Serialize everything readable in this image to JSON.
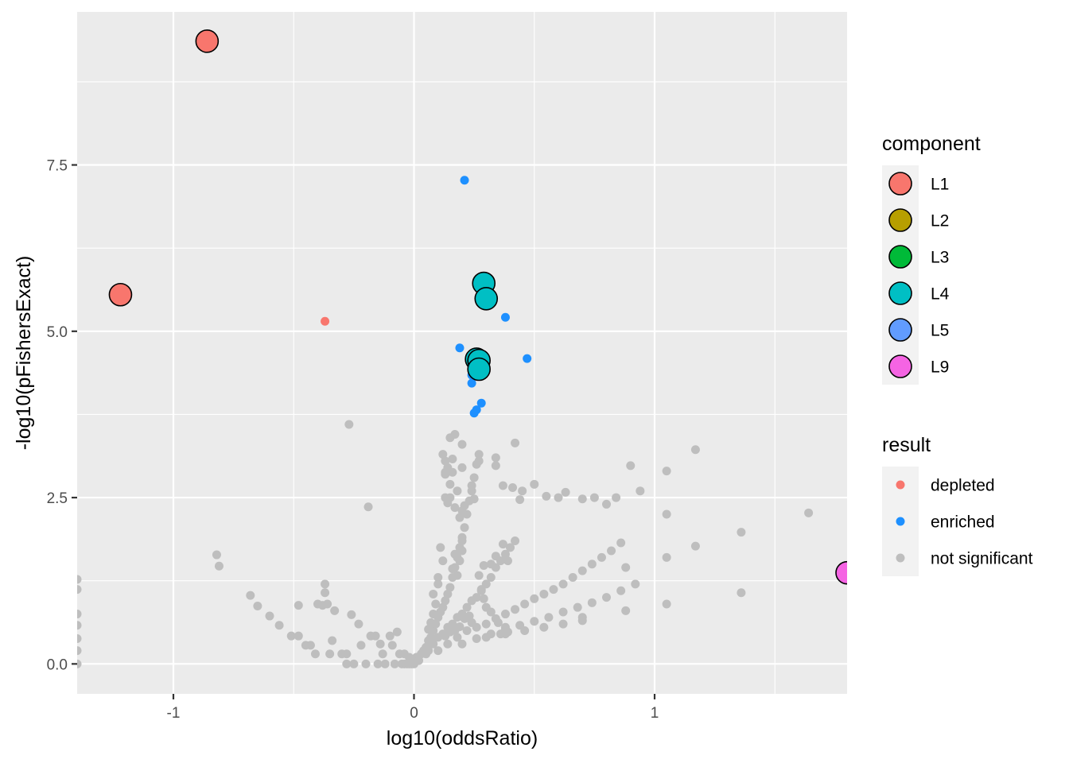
{
  "chart_data": {
    "type": "scatter",
    "xlabel": "log10(oddsRatio)",
    "ylabel": "-log10(pFishersExact)",
    "xlim": [
      -1.4,
      1.8
    ],
    "ylim": [
      -0.45,
      9.8
    ],
    "x_ticks": [
      {
        "value": -1,
        "label": "-1"
      },
      {
        "value": 0,
        "label": "0"
      },
      {
        "value": 1,
        "label": "1"
      }
    ],
    "y_ticks": [
      {
        "value": 0.0,
        "label": "0.0"
      },
      {
        "value": 2.5,
        "label": "2.5"
      },
      {
        "value": 5.0,
        "label": "5.0"
      },
      {
        "value": 7.5,
        "label": "7.5"
      }
    ],
    "panel_background": "#ebebeb",
    "grid": true,
    "legend_position": "right",
    "legends": [
      {
        "title": "component",
        "entries": [
          {
            "label": "L1",
            "color": "#f8766d"
          },
          {
            "label": "L2",
            "color": "#b79f00"
          },
          {
            "label": "L3",
            "color": "#00ba38"
          },
          {
            "label": "L4",
            "color": "#00bfc4"
          },
          {
            "label": "L5",
            "color": "#619cff"
          },
          {
            "label": "L9",
            "color": "#f564e3"
          }
        ]
      },
      {
        "title": "result",
        "entries": [
          {
            "label": "depleted",
            "color": "#f8766d"
          },
          {
            "label": "enriched",
            "color": "#1e90ff"
          },
          {
            "label": "not significant",
            "color": "#bebebe"
          }
        ]
      }
    ],
    "series": [
      {
        "name": "not significant",
        "color": "#bebebe",
        "points": [
          [
            -1.4,
            1.27
          ],
          [
            -1.4,
            1.12
          ],
          [
            -1.4,
            0.75
          ],
          [
            -1.4,
            0.58
          ],
          [
            -1.4,
            0.38
          ],
          [
            -1.4,
            0.2
          ],
          [
            -1.4,
            0.0
          ],
          [
            -0.82,
            1.64
          ],
          [
            -0.81,
            1.47
          ],
          [
            -0.68,
            1.03
          ],
          [
            -0.65,
            0.87
          ],
          [
            -0.6,
            0.72
          ],
          [
            -0.56,
            0.58
          ],
          [
            -0.51,
            0.42
          ],
          [
            -0.48,
            0.42
          ],
          [
            -0.48,
            0.88
          ],
          [
            -0.45,
            0.28
          ],
          [
            -0.43,
            0.28
          ],
          [
            -0.41,
            0.15
          ],
          [
            -0.4,
            0.9
          ],
          [
            -0.38,
            0.88
          ],
          [
            -0.37,
            1.2
          ],
          [
            -0.37,
            1.07
          ],
          [
            -0.36,
            0.9
          ],
          [
            -0.35,
            0.15
          ],
          [
            -0.34,
            0.35
          ],
          [
            -0.33,
            0.8
          ],
          [
            -0.3,
            0.15
          ],
          [
            -0.28,
            0.15
          ],
          [
            -0.28,
            0.0
          ],
          [
            -0.26,
            0.74
          ],
          [
            -0.25,
            0.0
          ],
          [
            -0.23,
            0.6
          ],
          [
            -0.22,
            0.28
          ],
          [
            -0.2,
            0.0
          ],
          [
            -0.19,
            2.36
          ],
          [
            -0.18,
            0.42
          ],
          [
            -0.16,
            0.42
          ],
          [
            -0.15,
            0.0
          ],
          [
            -0.14,
            0.3
          ],
          [
            -0.13,
            0.15
          ],
          [
            -0.12,
            0.0
          ],
          [
            -0.1,
            0.42
          ],
          [
            -0.09,
            0.28
          ],
          [
            -0.08,
            0.0
          ],
          [
            -0.06,
            0.15
          ],
          [
            -0.05,
            0.0
          ],
          [
            -0.04,
            0.0
          ],
          [
            -0.03,
            0.0
          ],
          [
            -0.02,
            0.0
          ],
          [
            -0.01,
            0.0
          ],
          [
            0.0,
            0.0
          ],
          [
            -0.07,
            0.48
          ],
          [
            -0.04,
            0.15
          ],
          [
            -0.02,
            0.1
          ],
          [
            -0.27,
            3.6
          ],
          [
            0.01,
            0.1
          ],
          [
            0.02,
            0.05
          ],
          [
            0.03,
            0.15
          ],
          [
            0.04,
            0.2
          ],
          [
            0.05,
            0.25
          ],
          [
            0.06,
            0.35
          ],
          [
            0.07,
            0.4
          ],
          [
            0.08,
            0.5
          ],
          [
            0.09,
            0.6
          ],
          [
            0.1,
            0.7
          ],
          [
            0.11,
            0.78
          ],
          [
            0.12,
            0.85
          ],
          [
            0.13,
            0.95
          ],
          [
            0.14,
            1.05
          ],
          [
            0.15,
            1.15
          ],
          [
            0.16,
            1.3
          ],
          [
            0.17,
            1.45
          ],
          [
            0.18,
            1.6
          ],
          [
            0.19,
            1.75
          ],
          [
            0.2,
            1.9
          ],
          [
            0.21,
            2.05
          ],
          [
            0.22,
            2.25
          ],
          [
            0.23,
            2.45
          ],
          [
            0.24,
            2.6
          ],
          [
            0.25,
            2.8
          ],
          [
            0.26,
            3.0
          ],
          [
            0.27,
            3.15
          ],
          [
            0.05,
            0.15
          ],
          [
            0.06,
            0.2
          ],
          [
            0.08,
            0.3
          ],
          [
            0.1,
            0.4
          ],
          [
            0.12,
            0.45
          ],
          [
            0.14,
            0.55
          ],
          [
            0.16,
            0.6
          ],
          [
            0.18,
            0.7
          ],
          [
            0.2,
            0.75
          ],
          [
            0.22,
            0.85
          ],
          [
            0.24,
            0.95
          ],
          [
            0.26,
            1.0
          ],
          [
            0.28,
            1.1
          ],
          [
            0.3,
            1.2
          ],
          [
            0.32,
            1.3
          ],
          [
            0.34,
            1.45
          ],
          [
            0.36,
            1.55
          ],
          [
            0.38,
            1.65
          ],
          [
            0.4,
            1.75
          ],
          [
            0.42,
            1.85
          ],
          [
            0.1,
            0.2
          ],
          [
            0.14,
            0.3
          ],
          [
            0.18,
            0.4
          ],
          [
            0.22,
            0.5
          ],
          [
            0.26,
            0.55
          ],
          [
            0.3,
            0.6
          ],
          [
            0.34,
            0.68
          ],
          [
            0.38,
            0.75
          ],
          [
            0.42,
            0.82
          ],
          [
            0.46,
            0.9
          ],
          [
            0.5,
            0.98
          ],
          [
            0.54,
            1.05
          ],
          [
            0.58,
            1.12
          ],
          [
            0.62,
            1.2
          ],
          [
            0.66,
            1.3
          ],
          [
            0.7,
            1.4
          ],
          [
            0.74,
            1.5
          ],
          [
            0.78,
            1.6
          ],
          [
            0.82,
            1.7
          ],
          [
            0.86,
            1.82
          ],
          [
            0.2,
            0.3
          ],
          [
            0.26,
            0.38
          ],
          [
            0.32,
            0.45
          ],
          [
            0.38,
            0.52
          ],
          [
            0.44,
            0.58
          ],
          [
            0.5,
            0.64
          ],
          [
            0.56,
            0.7
          ],
          [
            0.62,
            0.78
          ],
          [
            0.68,
            0.85
          ],
          [
            0.74,
            0.92
          ],
          [
            0.8,
            1.0
          ],
          [
            0.86,
            1.1
          ],
          [
            0.92,
            1.2
          ],
          [
            0.3,
            0.4
          ],
          [
            0.38,
            0.45
          ],
          [
            0.46,
            0.5
          ],
          [
            0.54,
            0.55
          ],
          [
            0.62,
            0.6
          ],
          [
            0.7,
            0.65
          ],
          [
            0.6,
            2.5
          ],
          [
            0.63,
            2.58
          ],
          [
            0.7,
            2.48
          ],
          [
            0.75,
            2.5
          ],
          [
            0.8,
            2.4
          ],
          [
            0.84,
            2.5
          ],
          [
            0.9,
            2.98
          ],
          [
            0.94,
            2.6
          ],
          [
            1.05,
            2.9
          ],
          [
            1.05,
            2.25
          ],
          [
            1.17,
            3.22
          ],
          [
            1.17,
            1.77
          ],
          [
            1.05,
            1.6
          ],
          [
            1.05,
            0.9
          ],
          [
            1.36,
            1.98
          ],
          [
            1.36,
            1.07
          ],
          [
            1.64,
            2.27
          ],
          [
            0.88,
            1.45
          ],
          [
            0.88,
            0.8
          ],
          [
            0.7,
            0.7
          ],
          [
            0.55,
            2.52
          ],
          [
            0.5,
            2.7
          ],
          [
            0.45,
            2.6
          ],
          [
            0.44,
            2.47
          ],
          [
            0.41,
            2.65
          ],
          [
            0.37,
            2.68
          ],
          [
            0.42,
            3.32
          ],
          [
            0.34,
            3.1
          ],
          [
            0.34,
            2.98
          ],
          [
            0.27,
            3.05
          ],
          [
            0.2,
            2.95
          ],
          [
            0.16,
            3.08
          ],
          [
            0.16,
            2.88
          ],
          [
            0.13,
            3.05
          ],
          [
            0.14,
            2.95
          ],
          [
            0.13,
            2.88
          ],
          [
            0.12,
            3.15
          ],
          [
            0.15,
            3.4
          ],
          [
            0.17,
            3.45
          ],
          [
            0.2,
            3.3
          ],
          [
            0.13,
            2.85
          ],
          [
            0.15,
            2.7
          ],
          [
            0.18,
            2.6
          ],
          [
            0.24,
            2.68
          ],
          [
            0.25,
            2.48
          ],
          [
            0.2,
            2.3
          ],
          [
            0.19,
            2.2
          ],
          [
            0.21,
            2.38
          ],
          [
            0.14,
            2.42
          ],
          [
            0.13,
            2.5
          ],
          [
            0.15,
            2.5
          ],
          [
            0.17,
            2.35
          ],
          [
            0.2,
            1.85
          ],
          [
            0.2,
            1.7
          ],
          [
            0.17,
            1.65
          ],
          [
            0.19,
            1.55
          ],
          [
            0.16,
            1.43
          ],
          [
            0.18,
            1.33
          ],
          [
            0.11,
            1.75
          ],
          [
            0.12,
            1.55
          ],
          [
            0.1,
            1.3
          ],
          [
            0.1,
            1.2
          ],
          [
            0.08,
            1.05
          ],
          [
            0.09,
            0.9
          ],
          [
            0.08,
            0.75
          ],
          [
            0.07,
            0.62
          ],
          [
            0.06,
            0.52
          ],
          [
            0.07,
            0.38
          ],
          [
            0.32,
            1.5
          ],
          [
            0.34,
            1.62
          ],
          [
            0.37,
            1.8
          ],
          [
            0.39,
            1.55
          ],
          [
            0.29,
            1.48
          ],
          [
            0.27,
            1.33
          ],
          [
            0.28,
            1.12
          ],
          [
            0.29,
            0.98
          ],
          [
            0.3,
            0.85
          ],
          [
            0.32,
            0.78
          ],
          [
            0.35,
            0.62
          ],
          [
            0.38,
            0.55
          ],
          [
            0.39,
            0.48
          ],
          [
            0.36,
            0.45
          ],
          [
            0.24,
            0.62
          ],
          [
            0.23,
            0.72
          ],
          [
            0.21,
            0.68
          ],
          [
            0.19,
            0.56
          ],
          [
            0.17,
            0.5
          ],
          [
            0.15,
            0.48
          ],
          [
            0.13,
            0.42
          ]
        ]
      },
      {
        "name": "enriched",
        "color": "#1e90ff",
        "points": [
          [
            0.21,
            7.27
          ],
          [
            0.38,
            5.21
          ],
          [
            0.19,
            4.75
          ],
          [
            0.47,
            4.59
          ],
          [
            0.24,
            4.34
          ],
          [
            0.24,
            4.22
          ],
          [
            0.28,
            3.92
          ],
          [
            0.26,
            3.82
          ],
          [
            0.25,
            3.77
          ]
        ]
      },
      {
        "name": "depleted",
        "color": "#f8766d",
        "points": [
          [
            -0.37,
            5.15
          ]
        ]
      }
    ],
    "component_points": [
      {
        "component": "L1",
        "x": -0.86,
        "y": 9.36
      },
      {
        "component": "L1",
        "x": -1.22,
        "y": 5.55
      },
      {
        "component": "L4",
        "x": 0.29,
        "y": 5.72
      },
      {
        "component": "L4",
        "x": 0.3,
        "y": 5.49
      },
      {
        "component": "L4",
        "x": 0.26,
        "y": 4.58
      },
      {
        "component": "L4",
        "x": 0.27,
        "y": 4.56
      },
      {
        "component": "L4",
        "x": 0.27,
        "y": 4.43
      },
      {
        "component": "L9",
        "x": 1.8,
        "y": 1.37
      }
    ]
  }
}
